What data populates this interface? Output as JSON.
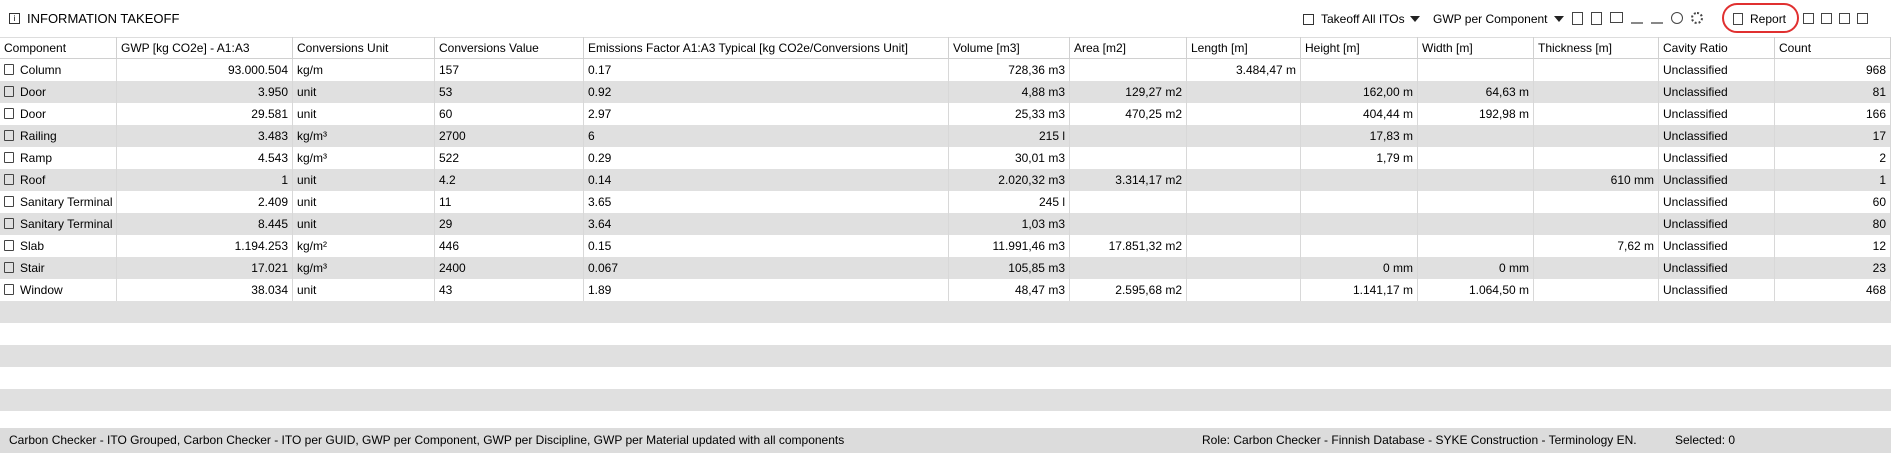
{
  "header": {
    "title": "INFORMATION TAKEOFF",
    "takeoff_dropdown": "Takeoff All ITOs",
    "view_dropdown": "GWP per Component",
    "report_button": "Report"
  },
  "table": {
    "columns": [
      "Component",
      "GWP [kg CO2e] - A1:A3",
      "Conversions Unit",
      "Conversions Value",
      "Emissions Factor A1:A3 Typical [kg CO2e/Conversions Unit]",
      "Volume [m3]",
      "Area [m2]",
      "Length [m]",
      "Height [m]",
      "Width [m]",
      "Thickness [m]",
      "Cavity Ratio",
      "Count"
    ],
    "rows": [
      [
        "Column",
        "93.000.504",
        "kg/m",
        "157",
        "0.17",
        "728,36 m3",
        null,
        "3.484,47 m",
        null,
        null,
        null,
        "Unclassified",
        "968"
      ],
      [
        "Door",
        "3.950",
        "unit",
        "53",
        "0.92",
        "4,88 m3",
        "129,27 m2",
        null,
        "162,00 m",
        "64,63 m",
        null,
        "Unclassified",
        "81"
      ],
      [
        "Door",
        "29.581",
        "unit",
        "60",
        "2.97",
        "25,33 m3",
        "470,25 m2",
        null,
        "404,44 m",
        "192,98 m",
        null,
        "Unclassified",
        "166"
      ],
      [
        "Railing",
        "3.483",
        "kg/m³",
        "2700",
        "6",
        "215 l",
        null,
        null,
        "17,83 m",
        null,
        null,
        "Unclassified",
        "17"
      ],
      [
        "Ramp",
        "4.543",
        "kg/m³",
        "522",
        "0.29",
        "30,01 m3",
        null,
        null,
        "1,79 m",
        null,
        null,
        "Unclassified",
        "2"
      ],
      [
        "Roof",
        "1",
        "unit",
        "4.2",
        "0.14",
        "2.020,32 m3",
        "3.314,17 m2",
        null,
        null,
        null,
        "610 mm",
        "Unclassified",
        "1"
      ],
      [
        "Sanitary Terminal",
        "2.409",
        "unit",
        "11",
        "3.65",
        "245 l",
        null,
        null,
        null,
        null,
        null,
        "Unclassified",
        "60"
      ],
      [
        "Sanitary Terminal",
        "8.445",
        "unit",
        "29",
        "3.64",
        "1,03 m3",
        null,
        null,
        null,
        null,
        null,
        "Unclassified",
        "80"
      ],
      [
        "Slab",
        "1.194.253",
        "kg/m²",
        "446",
        "0.15",
        "11.991,46 m3",
        "17.851,32 m2",
        null,
        null,
        null,
        "7,62 m",
        "Unclassified",
        "12"
      ],
      [
        "Stair",
        "17.021",
        "kg/m³",
        "2400",
        "0.067",
        "105,85 m3",
        null,
        null,
        "0 mm",
        "0 mm",
        null,
        "Unclassified",
        "23"
      ],
      [
        "Window",
        "38.034",
        "unit",
        "43",
        "1.89",
        "48,47 m3",
        "2.595,68 m2",
        null,
        "1.141,17 m",
        "1.064,50 m",
        null,
        "Unclassified",
        "468"
      ]
    ]
  },
  "status": {
    "message": "Carbon Checker - ITO Grouped, Carbon Checker - ITO per GUID, GWP per Component, GWP per Discipline, GWP per Material updated with all components",
    "role": "Role: Carbon Checker - Finnish Database - SYKE Construction  - Terminology EN.",
    "selected": "Selected: 0"
  }
}
